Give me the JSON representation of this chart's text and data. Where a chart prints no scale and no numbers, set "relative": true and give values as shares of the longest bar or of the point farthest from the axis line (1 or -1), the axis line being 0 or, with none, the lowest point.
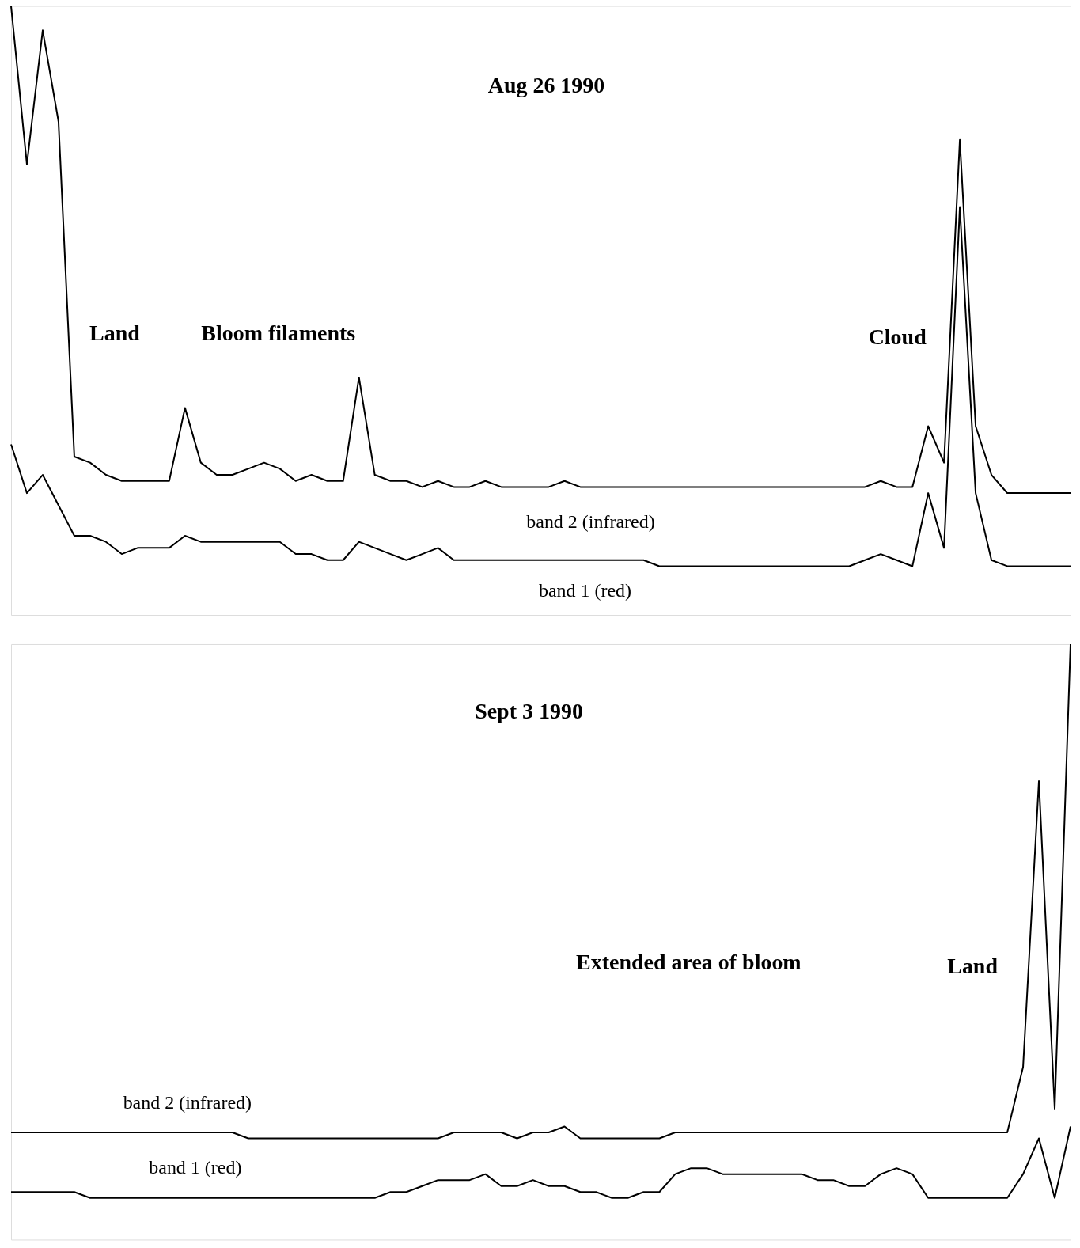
{
  "chart_data": [
    {
      "type": "line",
      "title": "Aug 26 1990",
      "relative": true,
      "categories": [
        null,
        null,
        null,
        null,
        null,
        null,
        null,
        null,
        null,
        null,
        null,
        null,
        null,
        null,
        null,
        null,
        null,
        null,
        null,
        null,
        null,
        null,
        null,
        null,
        null,
        null,
        null,
        null,
        null,
        null,
        null,
        null,
        null,
        null,
        null,
        null,
        null,
        null,
        null,
        null,
        null,
        null,
        null,
        null,
        null,
        null,
        null,
        null,
        null,
        null,
        null,
        null,
        null,
        null,
        null,
        null,
        null,
        null,
        null,
        null,
        null,
        null,
        null,
        null,
        null,
        null,
        null,
        null
      ],
      "series": [
        {
          "name": "band 2 (infrared)",
          "color": "#000000",
          "values": [
            1.0,
            0.74,
            0.96,
            0.81,
            0.26,
            0.25,
            0.23,
            0.22,
            0.22,
            0.22,
            0.22,
            0.34,
            0.25,
            0.23,
            0.23,
            0.24,
            0.25,
            0.24,
            0.22,
            0.23,
            0.22,
            0.22,
            0.39,
            0.23,
            0.22,
            0.22,
            0.21,
            0.22,
            0.21,
            0.21,
            0.22,
            0.21,
            0.21,
            0.21,
            0.21,
            0.22,
            0.21,
            0.21,
            0.21,
            0.21,
            0.21,
            0.21,
            0.21,
            0.21,
            0.21,
            0.21,
            0.21,
            0.21,
            0.21,
            0.21,
            0.21,
            0.21,
            0.21,
            0.21,
            0.21,
            0.22,
            0.21,
            0.21,
            0.31,
            0.25,
            0.78,
            0.31,
            0.23,
            0.2,
            0.2,
            0.2,
            0.2,
            0.2
          ]
        },
        {
          "name": "band 1 (red)",
          "color": "#000000",
          "values": [
            0.28,
            0.2,
            0.23,
            0.18,
            0.13,
            0.13,
            0.12,
            0.1,
            0.11,
            0.11,
            0.11,
            0.13,
            0.12,
            0.12,
            0.12,
            0.12,
            0.12,
            0.12,
            0.1,
            0.1,
            0.09,
            0.09,
            0.12,
            0.11,
            0.1,
            0.09,
            0.1,
            0.11,
            0.09,
            0.09,
            0.09,
            0.09,
            0.09,
            0.09,
            0.09,
            0.09,
            0.09,
            0.09,
            0.09,
            0.09,
            0.09,
            0.08,
            0.08,
            0.08,
            0.08,
            0.08,
            0.08,
            0.08,
            0.08,
            0.08,
            0.08,
            0.08,
            0.08,
            0.08,
            0.09,
            0.1,
            0.09,
            0.08,
            0.2,
            0.11,
            0.67,
            0.2,
            0.09,
            0.08,
            0.08,
            0.08,
            0.08,
            0.08
          ]
        }
      ],
      "annotations": [
        "Land",
        "Bloom filaments",
        "Cloud"
      ]
    },
    {
      "type": "line",
      "title": "Sept 3 1990",
      "relative": true,
      "categories": [
        null,
        null,
        null,
        null,
        null,
        null,
        null,
        null,
        null,
        null,
        null,
        null,
        null,
        null,
        null,
        null,
        null,
        null,
        null,
        null,
        null,
        null,
        null,
        null,
        null,
        null,
        null,
        null,
        null,
        null,
        null,
        null,
        null,
        null,
        null,
        null,
        null,
        null,
        null,
        null,
        null,
        null,
        null,
        null,
        null,
        null,
        null,
        null,
        null,
        null,
        null,
        null,
        null,
        null,
        null,
        null,
        null,
        null,
        null,
        null,
        null,
        null,
        null,
        null,
        null,
        null,
        null,
        null
      ],
      "series": [
        {
          "name": "band 2 (infrared)",
          "color": "#000000",
          "values": [
            0.18,
            0.18,
            0.18,
            0.18,
            0.18,
            0.18,
            0.18,
            0.18,
            0.18,
            0.18,
            0.18,
            0.18,
            0.18,
            0.18,
            0.18,
            0.17,
            0.17,
            0.17,
            0.17,
            0.17,
            0.17,
            0.17,
            0.17,
            0.17,
            0.17,
            0.17,
            0.17,
            0.17,
            0.18,
            0.18,
            0.18,
            0.18,
            0.17,
            0.18,
            0.18,
            0.19,
            0.17,
            0.17,
            0.17,
            0.17,
            0.17,
            0.17,
            0.18,
            0.18,
            0.18,
            0.18,
            0.18,
            0.18,
            0.18,
            0.18,
            0.18,
            0.18,
            0.18,
            0.18,
            0.18,
            0.18,
            0.18,
            0.18,
            0.18,
            0.18,
            0.18,
            0.18,
            0.18,
            0.18,
            0.29,
            0.77,
            0.22,
            1.0
          ]
        },
        {
          "name": "band 1 (red)",
          "color": "#000000",
          "values": [
            0.08,
            0.08,
            0.08,
            0.08,
            0.08,
            0.07,
            0.07,
            0.07,
            0.07,
            0.07,
            0.07,
            0.07,
            0.07,
            0.07,
            0.07,
            0.07,
            0.07,
            0.07,
            0.07,
            0.07,
            0.07,
            0.07,
            0.07,
            0.07,
            0.08,
            0.08,
            0.09,
            0.1,
            0.1,
            0.1,
            0.11,
            0.09,
            0.09,
            0.1,
            0.09,
            0.09,
            0.08,
            0.08,
            0.07,
            0.07,
            0.08,
            0.08,
            0.11,
            0.12,
            0.12,
            0.11,
            0.11,
            0.11,
            0.11,
            0.11,
            0.11,
            0.1,
            0.1,
            0.09,
            0.09,
            0.11,
            0.12,
            0.11,
            0.07,
            0.07,
            0.07,
            0.07,
            0.07,
            0.07,
            0.11,
            0.17,
            0.07,
            0.19
          ]
        }
      ],
      "annotations": [
        "Extended area of bloom",
        "Land"
      ]
    }
  ]
}
